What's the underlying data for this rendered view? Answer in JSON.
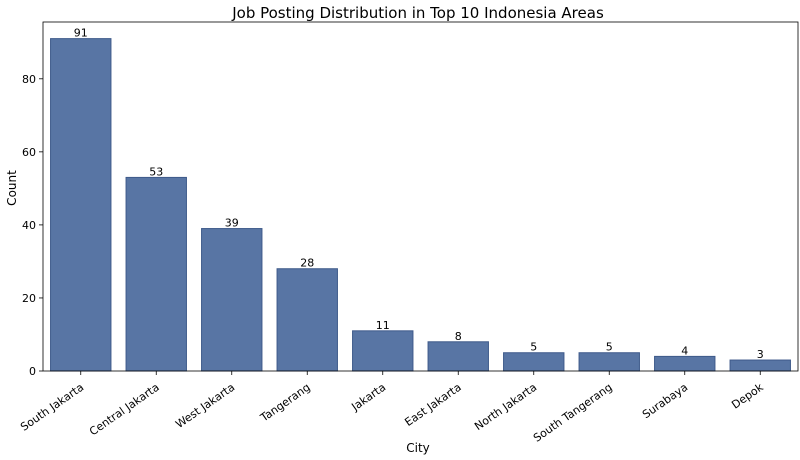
{
  "chart_data": {
    "type": "bar",
    "title": "Job Posting Distribution in Top 10 Indonesia Areas",
    "xlabel": "City",
    "ylabel": "Count",
    "categories": [
      "South Jakarta",
      "Central Jakarta",
      "West Jakarta",
      "Tangerang",
      "Jakarta",
      "East Jakarta",
      "North Jakarta",
      "South Tangerang",
      "Surabaya",
      "Depok"
    ],
    "values": [
      91,
      53,
      39,
      28,
      11,
      8,
      5,
      5,
      4,
      3
    ],
    "ylim": [
      0,
      95.55
    ],
    "yticks": [
      0,
      20,
      40,
      60,
      80
    ],
    "bar_color": "#5875a4",
    "bar_edge_color": "#3e5a8a",
    "data_labels": true,
    "grid": false
  }
}
